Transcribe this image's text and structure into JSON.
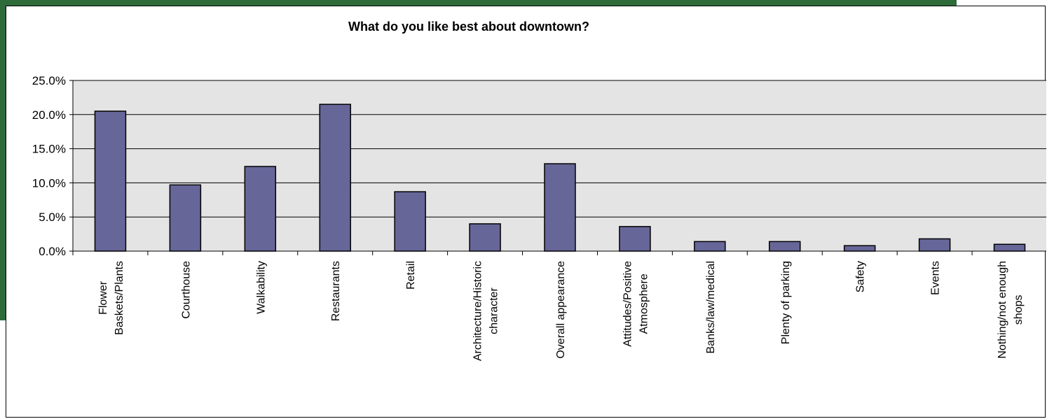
{
  "colors": {
    "frame": "#2e6b3a",
    "plot_background": "#e4e4e4",
    "bar_fill": "#666699",
    "bar_stroke": "#000000",
    "gridline": "#000000"
  },
  "chart_data": {
    "type": "bar",
    "title": "What do you like best about downtown?",
    "xlabel": "",
    "ylabel": "",
    "ylim": [
      0,
      25
    ],
    "y_ticks": [
      {
        "value": 0,
        "label": "0.0%"
      },
      {
        "value": 5,
        "label": "5.0%"
      },
      {
        "value": 10,
        "label": "10.0%"
      },
      {
        "value": 15,
        "label": "15.0%"
      },
      {
        "value": 20,
        "label": "20.0%"
      },
      {
        "value": 25,
        "label": "25.0%"
      }
    ],
    "grid": true,
    "legend": "none",
    "categories": [
      [
        "Flower",
        "Baskets/Plants"
      ],
      [
        "Courthouse"
      ],
      [
        "Walkability"
      ],
      [
        "Restaurants"
      ],
      [
        "Retail"
      ],
      [
        "Architecture/Historic",
        "character"
      ],
      [
        "Overall appearance"
      ],
      [
        "Attitudes/Positive",
        "Atmosphere"
      ],
      [
        "Banks/law/medical"
      ],
      [
        "Plenty of parking"
      ],
      [
        "Safety"
      ],
      [
        "Events"
      ],
      [
        "Nothing/not enough",
        "shops"
      ]
    ],
    "values": [
      20.5,
      9.7,
      12.4,
      21.5,
      8.7,
      4.0,
      12.8,
      3.6,
      1.4,
      1.4,
      0.8,
      1.8,
      1.0
    ]
  }
}
